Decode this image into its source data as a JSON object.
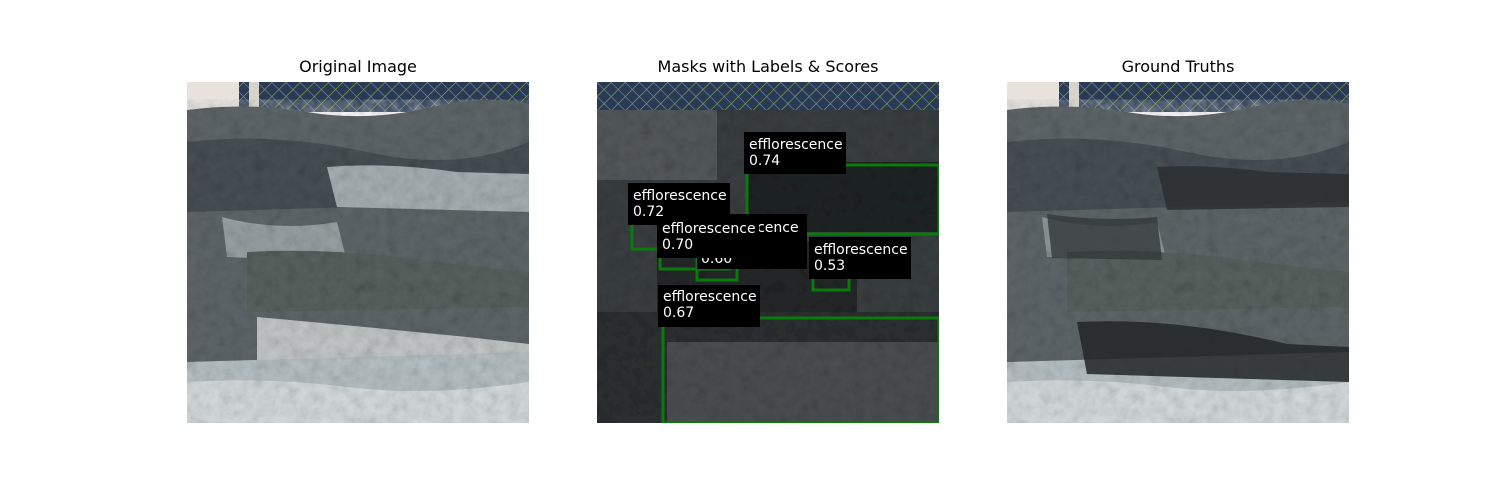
{
  "panels": [
    {
      "title": "Original Image"
    },
    {
      "title": "Masks with Labels & Scores"
    },
    {
      "title": "Ground Truths"
    }
  ],
  "detections": [
    {
      "label": "efflorescence",
      "score": "0.74"
    },
    {
      "label": "efflorescence",
      "score": "0.72"
    },
    {
      "label": "efflorescence",
      "score": "0.70"
    },
    {
      "label": "efflorescence",
      "score": "0.60"
    },
    {
      "label": "efflorescence",
      "score": "0.53"
    },
    {
      "label": "efflorescence",
      "score": "0.67"
    }
  ],
  "colors": {
    "box_outline": "#0a7a0a",
    "label_bg": "#000000",
    "label_text": "#ffffff"
  }
}
